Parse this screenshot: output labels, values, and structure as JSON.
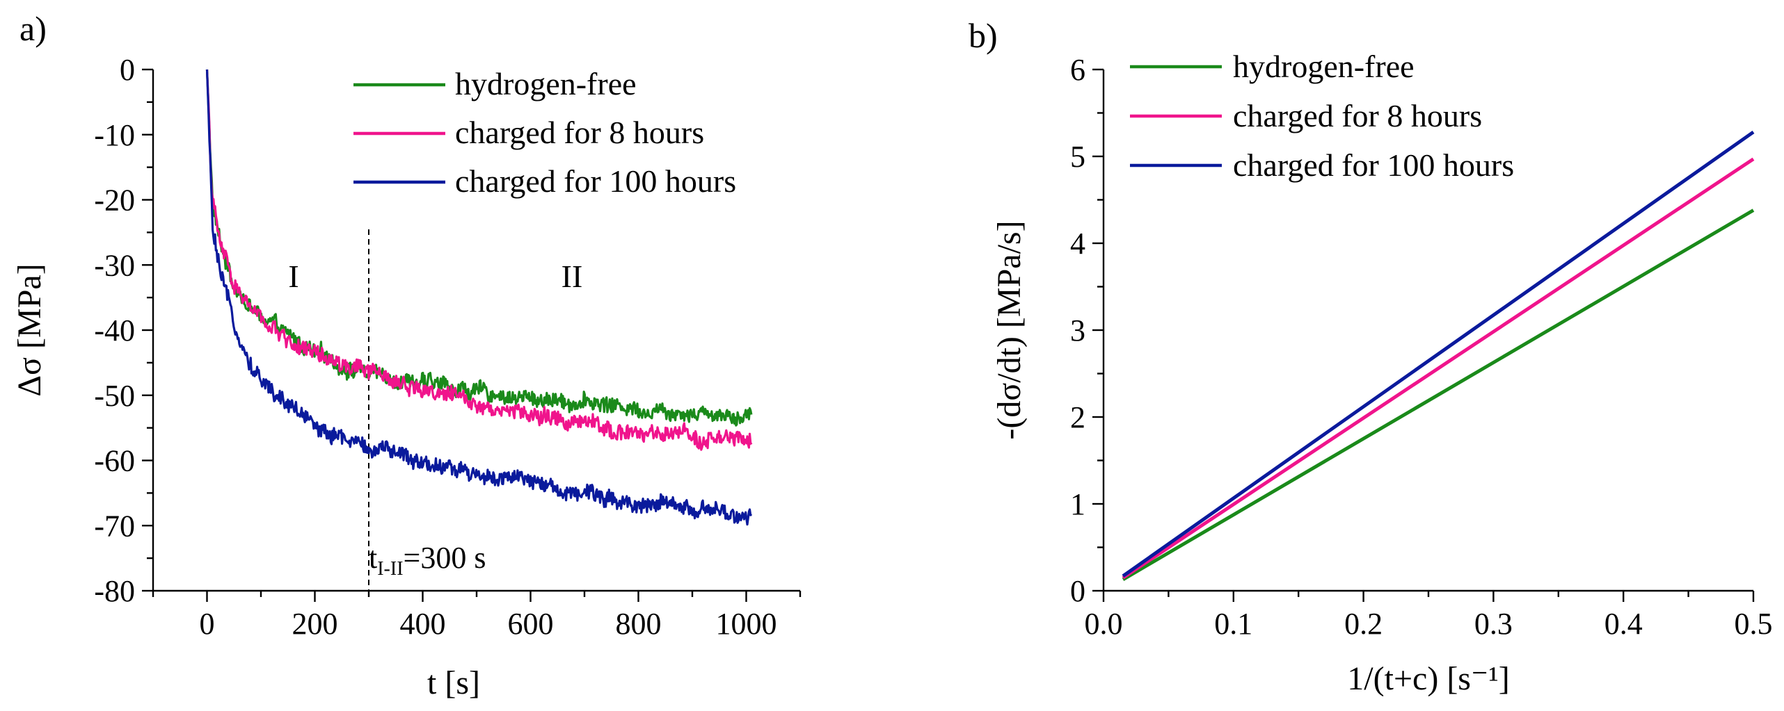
{
  "chart_data": [
    {
      "panel_label": "a)",
      "type": "line",
      "xlabel": "t [s]",
      "ylabel": "Δσ [MPa]",
      "xlim": [
        -100,
        1100
      ],
      "ylim": [
        -80,
        0
      ],
      "xticks": [
        0,
        200,
        400,
        600,
        800,
        1000
      ],
      "yticks": [
        0,
        -10,
        -20,
        -30,
        -40,
        -50,
        -60,
        -70,
        -80
      ],
      "xtick_labels": [
        "0",
        "200",
        "400",
        "600",
        "800",
        "1000"
      ],
      "ytick_labels": [
        "0",
        "-10",
        "-20",
        "-30",
        "-40",
        "-50",
        "-60",
        "-70",
        "-80"
      ],
      "legend_position": "top-right",
      "regions": [
        "I",
        "II"
      ],
      "boundary": {
        "t": 300,
        "label_main": "t",
        "label_sub": "I-II",
        "label_rest": "=300 s"
      },
      "series": [
        {
          "name": "hydrogen-free",
          "color": "#1a8a1a",
          "x": [
            0,
            10,
            25,
            50,
            75,
            100,
            150,
            200,
            250,
            300,
            400,
            500,
            600,
            700,
            800,
            900,
            1000
          ],
          "y": [
            0,
            -20,
            -27,
            -33,
            -36,
            -38,
            -41,
            -43.5,
            -45.5,
            -46.5,
            -48,
            -49.5,
            -50.5,
            -51,
            -52,
            -52.5,
            -53
          ]
        },
        {
          "name": "charged for 8 hours",
          "color": "#f0148c",
          "x": [
            0,
            10,
            25,
            50,
            75,
            100,
            150,
            200,
            250,
            300,
            400,
            500,
            600,
            700,
            800,
            900,
            1000
          ],
          "y": [
            0,
            -20,
            -27,
            -33,
            -36,
            -38.5,
            -41.5,
            -44,
            -45.5,
            -46.5,
            -49,
            -51,
            -53,
            -54.5,
            -56,
            -56.5,
            -57
          ]
        },
        {
          "name": "charged for 100 hours",
          "color": "#0a1a9c",
          "x": [
            0,
            10,
            25,
            50,
            75,
            100,
            150,
            200,
            250,
            300,
            400,
            500,
            600,
            700,
            800,
            900,
            1000
          ],
          "y": [
            0,
            -24,
            -32,
            -39,
            -44,
            -47.5,
            -51.5,
            -54.5,
            -56.5,
            -58,
            -60,
            -62,
            -63.5,
            -65,
            -66.5,
            -67.5,
            -69
          ]
        }
      ]
    },
    {
      "panel_label": "b)",
      "type": "line",
      "xlabel": "1/(t+c) [s⁻¹]",
      "ylabel": "-(dσ/dt) [MPa/s]",
      "xlim": [
        0,
        0.5
      ],
      "ylim": [
        0,
        6
      ],
      "xticks": [
        0,
        0.1,
        0.2,
        0.3,
        0.4,
        0.5
      ],
      "yticks": [
        0,
        1,
        2,
        3,
        4,
        5,
        6
      ],
      "xtick_labels": [
        "0.0",
        "0.1",
        "0.2",
        "0.3",
        "0.4",
        "0.5"
      ],
      "ytick_labels": [
        "0",
        "1",
        "2",
        "3",
        "4",
        "5",
        "6"
      ],
      "legend_position": "top-left",
      "series": [
        {
          "name": "hydrogen-free",
          "color": "#1a8a1a",
          "x": [
            0.015,
            0.5
          ],
          "y": [
            0.13,
            4.38
          ]
        },
        {
          "name": "charged for 8 hours",
          "color": "#f0148c",
          "x": [
            0.015,
            0.5
          ],
          "y": [
            0.15,
            4.97
          ]
        },
        {
          "name": "charged for 100 hours",
          "color": "#0a1a9c",
          "x": [
            0.015,
            0.5
          ],
          "y": [
            0.17,
            5.28
          ]
        }
      ]
    }
  ]
}
